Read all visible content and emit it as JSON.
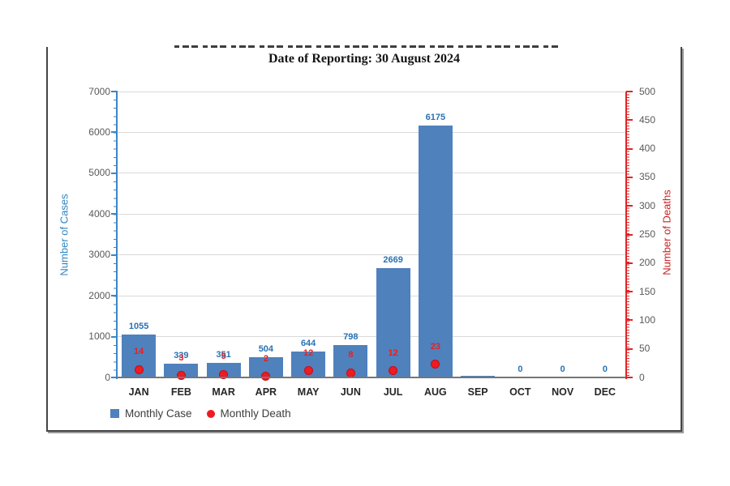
{
  "chart_data": {
    "type": "bar",
    "title": "Date of Reporting: 30 August 2024",
    "title_line1_clipped": true,
    "categories": [
      "JAN",
      "FEB",
      "MAR",
      "APR",
      "MAY",
      "JUN",
      "JUL",
      "AUG",
      "SEP",
      "OCT",
      "NOV",
      "DEC"
    ],
    "series": [
      {
        "name": "Monthly Case",
        "type": "bar",
        "axis": "left",
        "color": "#4f81bd",
        "values": [
          1055,
          339,
          351,
          504,
          644,
          798,
          2669,
          6175,
          40,
          0,
          0,
          0
        ],
        "labels": [
          "1055",
          "339",
          "351",
          "504",
          "644",
          "798",
          "2669",
          "6175",
          "",
          "0",
          "0",
          "0"
        ]
      },
      {
        "name": "Monthly Death",
        "type": "scatter",
        "axis": "right",
        "color": "#ee1b23",
        "values": [
          14,
          3,
          5,
          2,
          12,
          8,
          12,
          23,
          null,
          null,
          null,
          null
        ],
        "labels": [
          "14",
          "3",
          "5",
          "2",
          "12",
          "8",
          "12",
          "23",
          "",
          "",
          "",
          ""
        ]
      }
    ],
    "left_axis": {
      "title": "Number of Cases",
      "min": 0,
      "max": 7000,
      "step": 1000,
      "tick_labels": [
        "0",
        "1000",
        "2000",
        "3000",
        "4000",
        "5000",
        "6000",
        "7000"
      ],
      "color": "#2e86c1"
    },
    "right_axis": {
      "title": "Number of Deaths",
      "min": 0,
      "max": 500,
      "step": 50,
      "tick_labels": [
        "0",
        "50",
        "100",
        "150",
        "200",
        "250",
        "300",
        "350",
        "400",
        "450",
        "500"
      ],
      "color": "#cc2020"
    },
    "grid": true,
    "legend_position": "bottom-left"
  }
}
